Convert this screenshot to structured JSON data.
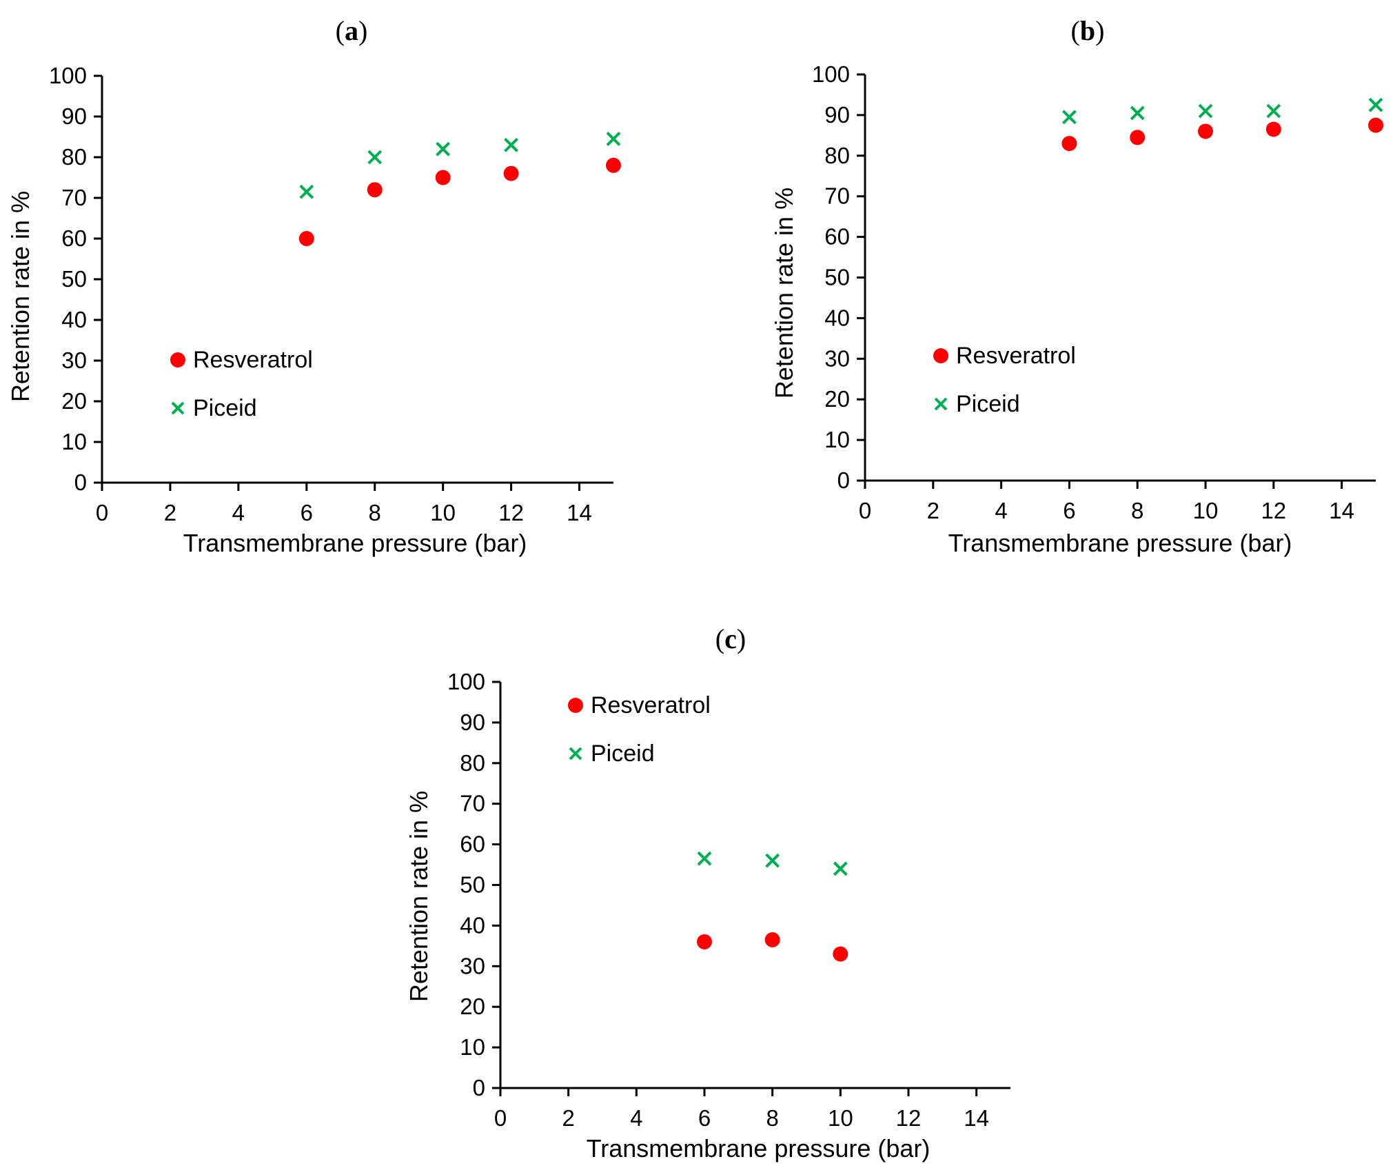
{
  "colors": {
    "resveratrol": "#ff0000",
    "piceid": "#00b050",
    "axis": "#000000"
  },
  "chart_data": [
    {
      "type": "scatter",
      "panel": "a",
      "panel_label": "a",
      "xlabel": "Transmembrane pressure (bar)",
      "ylabel": "Retention rate in %",
      "xlim": [
        0,
        15
      ],
      "ylim": [
        0,
        100
      ],
      "x_ticks": [
        0,
        2,
        4,
        6,
        8,
        10,
        12,
        14
      ],
      "y_ticks": [
        0,
        10,
        20,
        30,
        40,
        50,
        60,
        70,
        80,
        90,
        100
      ],
      "legend_position": "middle-left",
      "series": [
        {
          "name": "Resveratrol",
          "marker": "circle",
          "x": [
            6,
            8,
            10,
            12,
            15
          ],
          "y": [
            60,
            72,
            75,
            76,
            78
          ]
        },
        {
          "name": "Piceid",
          "marker": "x",
          "x": [
            6,
            8,
            10,
            12,
            15
          ],
          "y": [
            71.5,
            80,
            82,
            83,
            84.5
          ]
        }
      ]
    },
    {
      "type": "scatter",
      "panel": "b",
      "panel_label": "b",
      "xlabel": "Transmembrane pressure (bar)",
      "ylabel": "Retention rate in %",
      "xlim": [
        0,
        15
      ],
      "ylim": [
        0,
        100
      ],
      "x_ticks": [
        0,
        2,
        4,
        6,
        8,
        10,
        12,
        14
      ],
      "y_ticks": [
        0,
        10,
        20,
        30,
        40,
        50,
        60,
        70,
        80,
        90,
        100
      ],
      "legend_position": "middle-left",
      "series": [
        {
          "name": "Resveratrol",
          "marker": "circle",
          "x": [
            6,
            8,
            10,
            12,
            15
          ],
          "y": [
            83,
            84.5,
            86,
            86.5,
            87.5
          ]
        },
        {
          "name": "Piceid",
          "marker": "x",
          "x": [
            6,
            8,
            10,
            12,
            15
          ],
          "y": [
            89.5,
            90.5,
            91,
            91,
            92.5
          ]
        }
      ]
    },
    {
      "type": "scatter",
      "panel": "c",
      "panel_label": "c",
      "xlabel": "Transmembrane pressure (bar)",
      "ylabel": "Retention rate in %",
      "xlim": [
        0,
        15
      ],
      "ylim": [
        0,
        100
      ],
      "x_ticks": [
        0,
        2,
        4,
        6,
        8,
        10,
        12,
        14
      ],
      "y_ticks": [
        0,
        10,
        20,
        30,
        40,
        50,
        60,
        70,
        80,
        90,
        100
      ],
      "legend_position": "top-left",
      "series": [
        {
          "name": "Resveratrol",
          "marker": "circle",
          "x": [
            6,
            8,
            10
          ],
          "y": [
            36,
            36.5,
            33
          ]
        },
        {
          "name": "Piceid",
          "marker": "x",
          "x": [
            6,
            8,
            10
          ],
          "y": [
            56.5,
            56,
            54
          ]
        }
      ]
    }
  ]
}
